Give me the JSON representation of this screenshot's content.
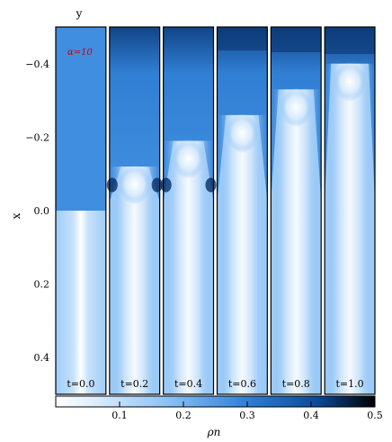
{
  "chart_data": {
    "type": "heatmap",
    "title": "",
    "xlabel": "y",
    "ylabel": "x",
    "annotation": "α=10",
    "annotation_color": "#cc0000",
    "x_ticks": [
      "−0.4",
      "−0.2",
      "0.0",
      "0.2",
      "0.4"
    ],
    "x_tick_values": [
      -0.4,
      -0.2,
      0.0,
      0.2,
      0.4
    ],
    "xlim": [
      -0.5,
      0.5
    ],
    "panels": [
      {
        "label": "t=0.0",
        "time": 0.0
      },
      {
        "label": "t=0.2",
        "time": 0.2
      },
      {
        "label": "t=0.4",
        "time": 0.4
      },
      {
        "label": "t=0.6",
        "time": 0.6
      },
      {
        "label": "t=0.8",
        "time": 0.8
      },
      {
        "label": "t=1.0",
        "time": 1.0
      }
    ],
    "colorbar": {
      "label": "ρn",
      "range": [
        0.0,
        0.5
      ],
      "ticks": [
        "0.1",
        "0.2",
        "0.3",
        "0.4",
        "0.5"
      ],
      "tick_values": [
        0.1,
        0.2,
        0.3,
        0.4,
        0.5
      ],
      "colors": [
        "#ffffff",
        "#a8d0f8",
        "#3d8ee0",
        "#0d4f9e",
        "#000000"
      ]
    }
  }
}
